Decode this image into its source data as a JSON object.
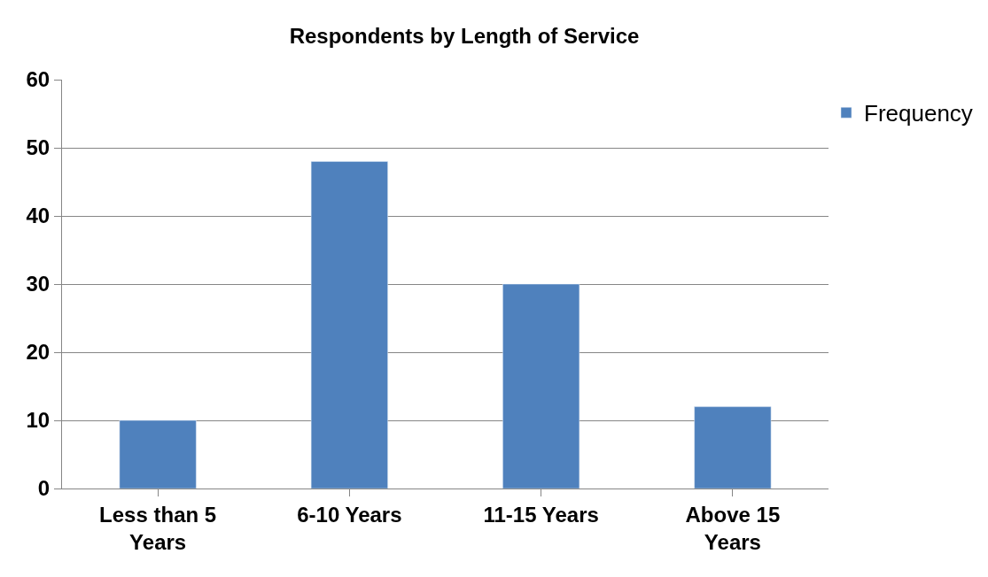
{
  "chart_data": {
    "type": "bar",
    "title": "Respondents by Length of Service",
    "categories": [
      "Less than 5 Years",
      "6-10 Years",
      "11-15 Years",
      "Above 15 Years"
    ],
    "series": [
      {
        "name": "Frequency",
        "color": "#4f81bd",
        "values": [
          10,
          48,
          30,
          12
        ]
      }
    ],
    "ylim": [
      0,
      60
    ],
    "yticks": [
      0,
      10,
      20,
      30,
      40,
      50,
      60
    ],
    "grid": "y",
    "legend": "top right"
  }
}
